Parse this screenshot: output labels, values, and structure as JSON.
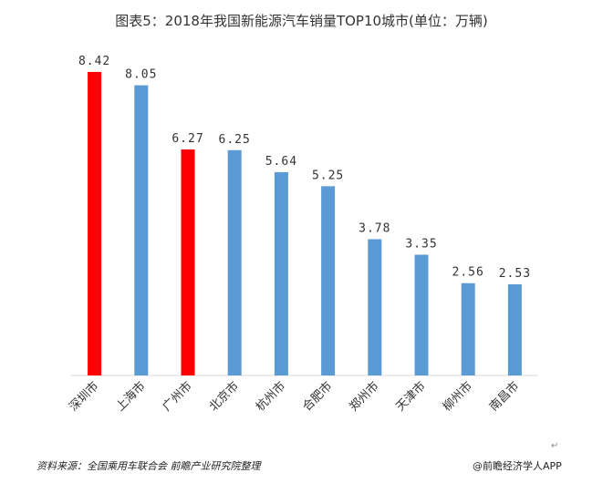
{
  "chart_data": {
    "type": "bar",
    "title": "图表5：2018年我国新能源汽车销量TOP10城市(单位：万辆)",
    "categories": [
      "深圳市",
      "上海市",
      "广州市",
      "北京市",
      "杭州市",
      "合肥市",
      "郑州市",
      "天津市",
      "柳州市",
      "南昌市"
    ],
    "values": [
      8.42,
      8.05,
      6.27,
      6.25,
      5.64,
      5.25,
      3.78,
      3.35,
      2.56,
      2.53
    ],
    "value_labels": [
      "8.42",
      "8.05",
      "6.27",
      "6.25",
      "5.64",
      "5.25",
      "3.78",
      "3.35",
      "2.56",
      "2.53"
    ],
    "highlighted_categories": [
      "深圳市",
      "广州市"
    ],
    "colors": {
      "highlight": "#ff0000",
      "default": "#5b9bd5",
      "axis": "#d9d9d9"
    },
    "xlabel": "",
    "ylabel": "",
    "ylim": [
      0,
      9
    ],
    "grid": false,
    "legend": "none"
  },
  "footer": {
    "source": "资料来源：全国乘用车联合会 前瞻产业研究院整理",
    "brand": "@前瞻经济学人APP",
    "return_mark": "↵"
  }
}
